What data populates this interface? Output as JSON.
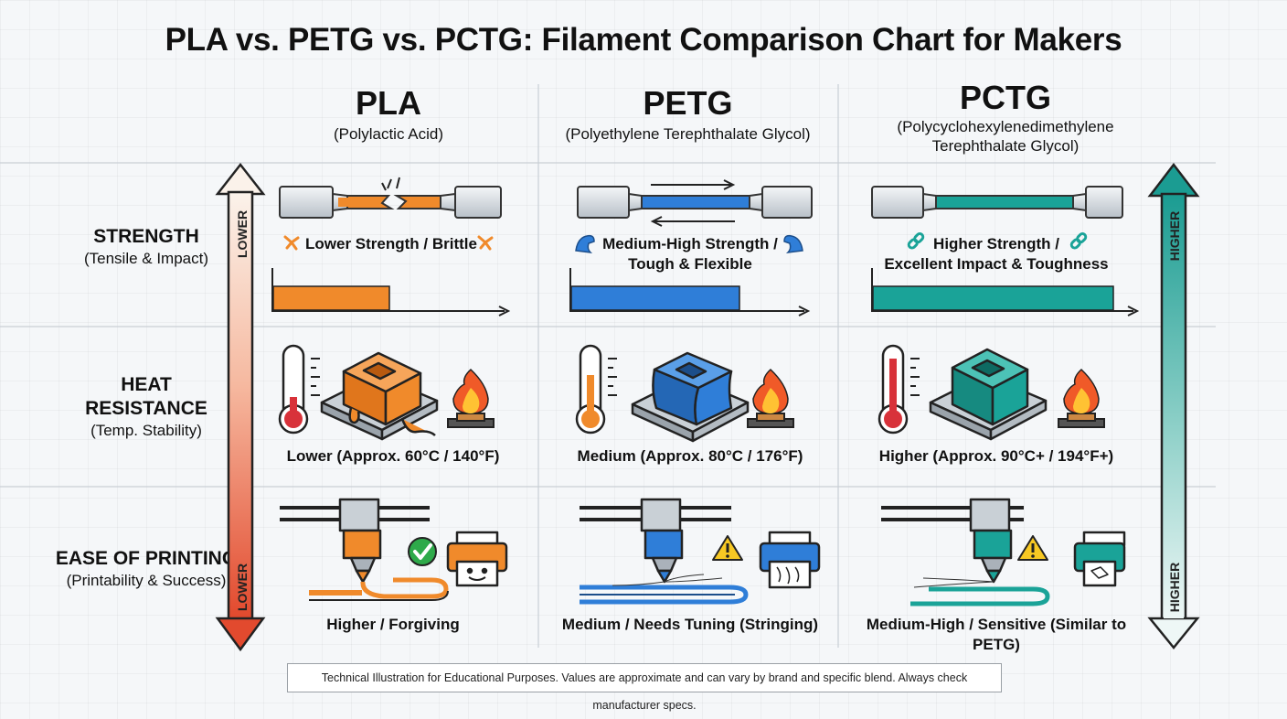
{
  "title": "PLA vs. PETG vs. PCTG: Filament Comparison Chart for Makers",
  "materials": [
    {
      "name": "PLA",
      "full_name": "(Polylactic Acid)",
      "color": "#f08a2b"
    },
    {
      "name": "PETG",
      "full_name": "(Polyethylene Terephthalate Glycol)",
      "color": "#2f7ed8"
    },
    {
      "name": "PCTG",
      "full_name_line1": "(Polycyclohexylenedimethylene",
      "full_name_line2": "Terephthalate Glycol)",
      "color": "#1aa398"
    }
  ],
  "rows": {
    "strength": {
      "label": "STRENGTH",
      "sub": "(Tensile & Impact)"
    },
    "heat": {
      "label_line1": "HEAT",
      "label_line2": "RESISTANCE",
      "sub": "(Temp. Stability)"
    },
    "ease": {
      "label": "EASE OF PRINTING",
      "sub": "(Printability & Success)"
    }
  },
  "left_arrow": {
    "top_label": "LOWER",
    "bottom_label": "LOWER"
  },
  "right_arrow": {
    "top_label": "HIGHER",
    "bottom_label": "HIGHER"
  },
  "strength": {
    "pla": {
      "text": "Lower Strength / Brittle",
      "level": 0.5
    },
    "petg": {
      "line1": "Medium-High Strength /",
      "line2": "Tough & Flexible",
      "level": 0.72
    },
    "pctg": {
      "line1": "Higher Strength /",
      "line2": "Excellent Impact & Toughness",
      "level": 0.92
    }
  },
  "heat": {
    "pla": {
      "text": "Lower (Approx. 60°C / 140°F)",
      "level": 0.25
    },
    "petg": {
      "text": "Medium (Approx. 80°C / 176°F)",
      "level": 0.6
    },
    "pctg": {
      "text": "Higher (Approx. 90°C+ / 194°F+)",
      "level": 0.85
    }
  },
  "ease": {
    "pla": {
      "text": "Higher / Forgiving"
    },
    "petg": {
      "text": "Medium / Needs Tuning (Stringing)"
    },
    "pctg": {
      "text": "Medium-High / Sensitive (Similar to PETG)"
    }
  },
  "footnote": "Technical Illustration for Educational Purposes. Values are approximate and can vary by brand and specific blend. Always check manufacturer specs."
}
